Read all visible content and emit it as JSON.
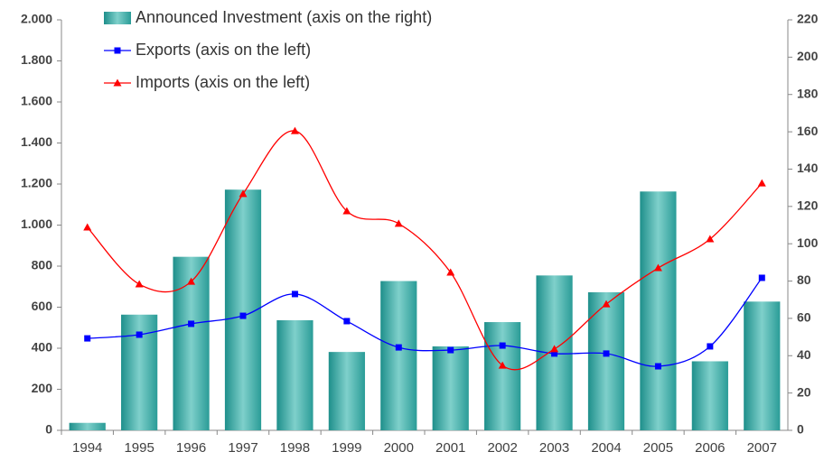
{
  "chart_data": {
    "type": "bar_line",
    "categories": [
      "1994",
      "1995",
      "1996",
      "1997",
      "1998",
      "1999",
      "2000",
      "2001",
      "2002",
      "2003",
      "2004",
      "2005",
      "2006",
      "2007"
    ],
    "series": [
      {
        "name": "Announced Investment (axis on the right)",
        "type": "bar",
        "axis": "y2",
        "color": "#3aa8a3",
        "values": [
          4,
          62,
          93,
          129,
          59,
          42,
          80,
          45,
          58,
          83,
          74,
          128,
          37,
          69
        ]
      },
      {
        "name": "Exports (axis on the left)",
        "type": "line",
        "marker": "square",
        "color": "#0000ff",
        "values": [
          448,
          466,
          519,
          558,
          664,
          532,
          404,
          391,
          413,
          374,
          374,
          312,
          409,
          743
        ]
      },
      {
        "name": "Imports (axis on the left)",
        "type": "line",
        "marker": "triangle",
        "color": "#ff0000",
        "values": [
          989,
          712,
          725,
          1152,
          1459,
          1068,
          1007,
          769,
          316,
          396,
          615,
          791,
          932,
          1204
        ]
      }
    ],
    "ylim": [
      0,
      2000
    ],
    "yticks": [
      0,
      200,
      400,
      600,
      800,
      {
        "value": 1000,
        "label": "1.000"
      },
      {
        "value": 1200,
        "label": "1.200"
      },
      {
        "value": 1400,
        "label": "1.400"
      },
      {
        "value": 1600,
        "label": "1.600"
      },
      {
        "value": 1800,
        "label": "1.800"
      },
      {
        "value": 2000,
        "label": "2.000"
      }
    ],
    "y2lim": [
      0,
      220
    ],
    "y2ticks": [
      0,
      20,
      40,
      60,
      80,
      100,
      120,
      140,
      160,
      180,
      200,
      220
    ],
    "grid": false,
    "legend": "top-left"
  }
}
